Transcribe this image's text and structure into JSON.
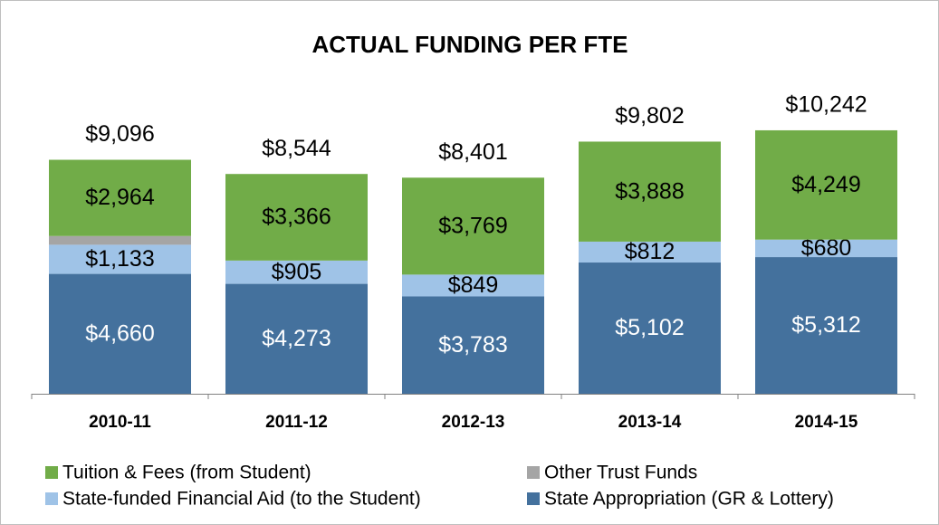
{
  "chart_data": {
    "type": "stacked_bar",
    "title": "ACTUAL FUNDING PER FTE",
    "categories": [
      "2010-11",
      "2011-12",
      "2012-13",
      "2013-14",
      "2014-15"
    ],
    "series": [
      {
        "name": "State Appropriation (GR & Lottery)",
        "color": "#44719d",
        "values": [
          4660,
          4273,
          3783,
          5102,
          5312
        ],
        "value_labels": [
          "$4,660",
          "$4,273",
          "$3,783",
          "$5,102",
          "$5,312"
        ]
      },
      {
        "name": "State-funded Financial Aid (to the Student)",
        "color": "#9fc3e7",
        "values": [
          1133,
          905,
          849,
          812,
          680
        ],
        "value_labels": [
          "$1,133",
          "$905",
          "$849",
          "$812",
          "$680"
        ]
      },
      {
        "name": "Other Trust Funds",
        "color": "#a5a5a5",
        "values": [
          339,
          0,
          0,
          0,
          1
        ]
      },
      {
        "name": "Tuition & Fees (from Student)",
        "color": "#71ac48",
        "values": [
          2964,
          3366,
          3769,
          3888,
          4249
        ],
        "value_labels": [
          "$2,964",
          "$3,366",
          "$3,769",
          "$3,888",
          "$4,249"
        ]
      }
    ],
    "totals": {
      "values": [
        9096,
        8544,
        8401,
        9802,
        10242
      ],
      "value_labels": [
        "$9,096",
        "$8,544",
        "$8,401",
        "$9,802",
        "$10,242"
      ]
    },
    "ylim": [
      0,
      12000
    ]
  }
}
